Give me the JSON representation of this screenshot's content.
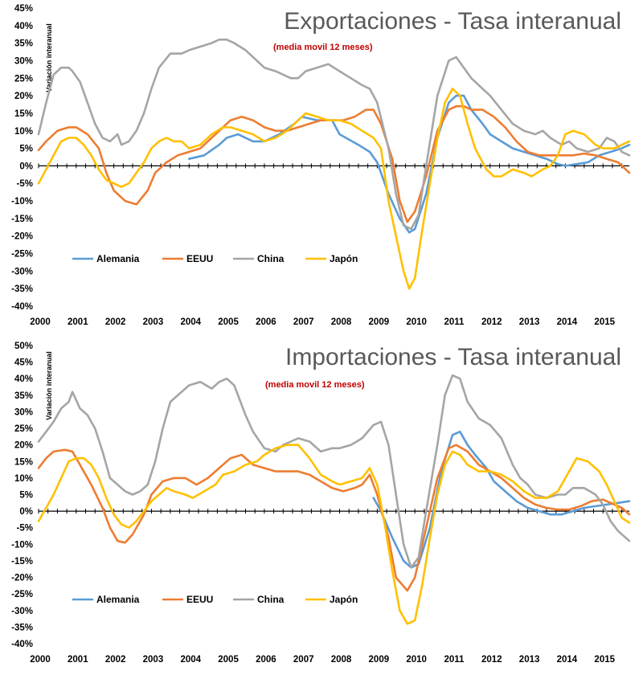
{
  "colors": {
    "Alemania": "#5b9bd5",
    "EEUU": "#ed7d31",
    "China": "#a5a5a5",
    "Japón": "#ffc000"
  },
  "chart_data": [
    {
      "type": "line",
      "title": "Exportaciones - Tasa interanual",
      "subtitle": "(media movil 12 meses)",
      "ylabel": "Variación interanual",
      "ylim": [
        -40,
        45
      ],
      "yticks": [
        "45%",
        "40%",
        "35%",
        "30%",
        "25%",
        "20%",
        "15%",
        "10%",
        "5%",
        "0%",
        "-5%",
        "-10%",
        "-15%",
        "-20%",
        "-25%",
        "-30%",
        "-35%",
        "-40%"
      ],
      "xticks": [
        "2000",
        "2001",
        "2002",
        "2003",
        "2004",
        "2005",
        "2006",
        "2007",
        "2008",
        "2009",
        "2010",
        "2011",
        "2012",
        "2013",
        "2014",
        "2015"
      ],
      "xlim": [
        2000.0,
        2015.7
      ],
      "legend": "bottom-left",
      "series": [
        {
          "name": "Alemania",
          "x": [
            2004.0,
            2004.4,
            2004.8,
            2005.0,
            2005.3,
            2005.7,
            2006.0,
            2006.4,
            2006.8,
            2007.0,
            2007.4,
            2007.8,
            2008.0,
            2008.5,
            2008.8,
            2009.0,
            2009.3,
            2009.6,
            2009.85,
            2010.0,
            2010.3,
            2010.6,
            2010.9,
            2011.1,
            2011.3,
            2011.5,
            2011.8,
            2012.0,
            2012.3,
            2012.6,
            2012.9,
            2013.2,
            2013.5,
            2013.8,
            2014.0,
            2014.3,
            2014.6,
            2014.9,
            2015.2,
            2015.5,
            2015.7
          ],
          "values": [
            2,
            3,
            6,
            8,
            9,
            7,
            7,
            9,
            12,
            14,
            13,
            13,
            9,
            6,
            4,
            1,
            -8,
            -15,
            -19,
            -18,
            -8,
            8,
            18,
            20,
            20,
            16,
            12,
            9,
            7,
            5,
            4,
            3,
            2,
            0.5,
            0,
            0.5,
            1,
            3,
            4,
            5,
            6
          ]
        },
        {
          "name": "EEUU",
          "x": [
            2000.0,
            2000.2,
            2000.5,
            2000.8,
            2001.0,
            2001.3,
            2001.6,
            2001.8,
            2002.0,
            2002.3,
            2002.6,
            2002.9,
            2003.1,
            2003.4,
            2003.7,
            2004.0,
            2004.3,
            2004.6,
            2004.9,
            2005.1,
            2005.4,
            2005.7,
            2006.0,
            2006.3,
            2006.6,
            2006.9,
            2007.2,
            2007.5,
            2007.8,
            2008.1,
            2008.4,
            2008.7,
            2008.9,
            2009.1,
            2009.4,
            2009.6,
            2009.8,
            2010.0,
            2010.3,
            2010.6,
            2010.9,
            2011.1,
            2011.3,
            2011.5,
            2011.8,
            2012.1,
            2012.4,
            2012.7,
            2013.0,
            2013.3,
            2013.6,
            2013.9,
            2014.2,
            2014.5,
            2014.8,
            2015.1,
            2015.4,
            2015.7
          ],
          "values": [
            4.5,
            7,
            10,
            11,
            11,
            9,
            5,
            -2,
            -7,
            -10,
            -11,
            -7,
            -2,
            1,
            3,
            4,
            5,
            8,
            11,
            13,
            14,
            13,
            11,
            10,
            10,
            11,
            12,
            13,
            13,
            13,
            14,
            16,
            16,
            12,
            2,
            -10,
            -16,
            -13,
            -3,
            10,
            16,
            17,
            17,
            16,
            16,
            14,
            11,
            7,
            4,
            3,
            3,
            3,
            3,
            3.5,
            3,
            2,
            1,
            -2
          ]
        },
        {
          "name": "China",
          "x": [
            2000.0,
            2000.2,
            2000.4,
            2000.6,
            2000.8,
            2000.9,
            2001.1,
            2001.3,
            2001.5,
            2001.7,
            2001.9,
            2002.1,
            2002.2,
            2002.4,
            2002.6,
            2002.8,
            2003.0,
            2003.2,
            2003.5,
            2003.8,
            2004.0,
            2004.3,
            2004.6,
            2004.8,
            2005.0,
            2005.2,
            2005.5,
            2005.7,
            2006.0,
            2006.3,
            2006.5,
            2006.7,
            2006.9,
            2007.1,
            2007.4,
            2007.7,
            2008.0,
            2008.3,
            2008.6,
            2008.8,
            2009.0,
            2009.3,
            2009.5,
            2009.7,
            2009.9,
            2010.1,
            2010.3,
            2010.6,
            2010.9,
            2011.1,
            2011.3,
            2011.5,
            2011.8,
            2012.0,
            2012.3,
            2012.6,
            2012.9,
            2013.2,
            2013.4,
            2013.6,
            2013.9,
            2014.1,
            2014.3,
            2014.6,
            2014.9,
            2015.1,
            2015.3,
            2015.5,
            2015.7
          ],
          "values": [
            9,
            18,
            26,
            28,
            28,
            27,
            24,
            18,
            12,
            8,
            7,
            9,
            6,
            7,
            10,
            15,
            22,
            28,
            32,
            32,
            33,
            34,
            35,
            36,
            36,
            35,
            33,
            31,
            28,
            27,
            26,
            25,
            25,
            27,
            28,
            29,
            27,
            25,
            23,
            22,
            18,
            5,
            -8,
            -17,
            -18,
            -14,
            0,
            20,
            30,
            31,
            28,
            25,
            22,
            20,
            16,
            12,
            10,
            9,
            10,
            8,
            6,
            7,
            5,
            4,
            5,
            8,
            7,
            4,
            3
          ]
        },
        {
          "name": "Japón",
          "x": [
            2000.0,
            2000.2,
            2000.4,
            2000.6,
            2000.8,
            2001.0,
            2001.2,
            2001.4,
            2001.6,
            2001.8,
            2002.0,
            2002.2,
            2002.4,
            2002.6,
            2002.8,
            2003.0,
            2003.2,
            2003.4,
            2003.6,
            2003.8,
            2004.0,
            2004.3,
            2004.6,
            2004.9,
            2005.1,
            2005.4,
            2005.7,
            2006.0,
            2006.3,
            2006.6,
            2006.9,
            2007.1,
            2007.4,
            2007.7,
            2008.0,
            2008.3,
            2008.6,
            2008.9,
            2009.1,
            2009.3,
            2009.5,
            2009.7,
            2009.85,
            2010.0,
            2010.2,
            2010.4,
            2010.6,
            2010.8,
            2011.0,
            2011.2,
            2011.4,
            2011.6,
            2011.9,
            2012.1,
            2012.3,
            2012.6,
            2012.9,
            2013.1,
            2013.4,
            2013.6,
            2013.8,
            2014.0,
            2014.2,
            2014.5,
            2014.8,
            2015.0,
            2015.3,
            2015.5,
            2015.7
          ],
          "values": [
            -5,
            -1,
            3,
            7,
            8,
            8,
            6,
            3,
            -1,
            -4,
            -5,
            -6,
            -5,
            -2,
            1,
            5,
            7,
            8,
            7,
            7,
            5,
            6,
            9,
            11,
            11,
            10,
            9,
            7,
            8,
            10,
            13,
            15,
            14,
            13,
            13,
            12,
            10,
            8,
            5,
            -10,
            -20,
            -30,
            -35,
            -32,
            -18,
            -5,
            8,
            18,
            22,
            20,
            12,
            5,
            -1,
            -3,
            -3,
            -1,
            -2,
            -3,
            -1,
            0,
            3,
            9,
            10,
            9,
            6,
            5,
            5,
            6,
            7
          ]
        }
      ]
    },
    {
      "type": "line",
      "title": "Importaciones - Tasa interanual",
      "subtitle": "(media movil 12 meses)",
      "ylabel": "Variación interanual",
      "ylim": [
        -40,
        50
      ],
      "yticks": [
        "50%",
        "45%",
        "40%",
        "35%",
        "30%",
        "25%",
        "20%",
        "15%",
        "10%",
        "5%",
        "0%",
        "-5%",
        "-10%",
        "-15%",
        "-20%",
        "-25%",
        "-30%",
        "-35%",
        "-40%"
      ],
      "xticks": [
        "2000",
        "2001",
        "2002",
        "2003",
        "2004",
        "2005",
        "2006",
        "2007",
        "2008",
        "2009",
        "2010",
        "2011",
        "2012",
        "2013",
        "2014",
        "2015"
      ],
      "xlim": [
        2000.0,
        2015.7
      ],
      "legend": "bottom-left",
      "series": [
        {
          "name": "Alemania",
          "x": [
            2008.9,
            2009.1,
            2009.4,
            2009.7,
            2009.9,
            2010.1,
            2010.4,
            2010.7,
            2011.0,
            2011.2,
            2011.4,
            2011.6,
            2011.9,
            2012.1,
            2012.4,
            2012.7,
            2013.0,
            2013.3,
            2013.6,
            2013.9,
            2014.2,
            2014.5,
            2014.8,
            2015.1,
            2015.4,
            2015.7
          ],
          "values": [
            4,
            0,
            -8,
            -15,
            -17,
            -16,
            -5,
            12,
            23,
            24,
            20,
            17,
            13,
            9,
            6,
            3,
            1,
            0,
            -1,
            -1,
            0,
            1,
            1.5,
            2,
            2.5,
            3
          ]
        },
        {
          "name": "EEUU",
          "x": [
            2000.0,
            2000.2,
            2000.4,
            2000.7,
            2000.9,
            2001.1,
            2001.4,
            2001.7,
            2001.9,
            2002.1,
            2002.3,
            2002.5,
            2002.8,
            2003.0,
            2003.3,
            2003.6,
            2003.9,
            2004.2,
            2004.5,
            2004.8,
            2005.1,
            2005.4,
            2005.7,
            2006.0,
            2006.3,
            2006.6,
            2006.9,
            2007.2,
            2007.5,
            2007.8,
            2008.1,
            2008.4,
            2008.6,
            2008.8,
            2009.0,
            2009.3,
            2009.5,
            2009.8,
            2010.0,
            2010.3,
            2010.6,
            2010.9,
            2011.1,
            2011.4,
            2011.7,
            2012.0,
            2012.3,
            2012.6,
            2012.9,
            2013.2,
            2013.5,
            2013.8,
            2014.1,
            2014.4,
            2014.7,
            2015.0,
            2015.3,
            2015.5,
            2015.7
          ],
          "values": [
            13,
            16,
            18,
            18.5,
            18,
            14,
            8,
            1,
            -5,
            -9,
            -9.5,
            -7,
            -1,
            5,
            9,
            10,
            10,
            8,
            10,
            13,
            16,
            17,
            14,
            13,
            12,
            12,
            12,
            11,
            9,
            7,
            6,
            7,
            8,
            11,
            5,
            -8,
            -20,
            -24,
            -20,
            -5,
            10,
            19,
            20,
            18,
            14,
            12,
            10,
            7,
            4,
            2,
            1,
            0.5,
            0.5,
            1.5,
            3,
            3.5,
            2,
            1,
            -1
          ]
        },
        {
          "name": "China",
          "x": [
            2000.0,
            2000.2,
            2000.4,
            2000.6,
            2000.8,
            2000.9,
            2001.1,
            2001.3,
            2001.5,
            2001.7,
            2001.9,
            2002.1,
            2002.3,
            2002.5,
            2002.7,
            2002.9,
            2003.1,
            2003.3,
            2003.5,
            2003.8,
            2004.0,
            2004.3,
            2004.6,
            2004.8,
            2005.0,
            2005.2,
            2005.5,
            2005.7,
            2006.0,
            2006.3,
            2006.5,
            2006.7,
            2006.9,
            2007.2,
            2007.5,
            2007.8,
            2008.0,
            2008.3,
            2008.6,
            2008.9,
            2009.1,
            2009.3,
            2009.5,
            2009.7,
            2009.9,
            2010.1,
            2010.3,
            2010.6,
            2010.8,
            2011.0,
            2011.2,
            2011.4,
            2011.7,
            2012.0,
            2012.3,
            2012.6,
            2012.8,
            2013.0,
            2013.2,
            2013.5,
            2013.8,
            2014.0,
            2014.2,
            2014.5,
            2014.8,
            2015.0,
            2015.2,
            2015.4,
            2015.7
          ],
          "values": [
            21,
            24,
            27,
            31,
            33,
            36,
            31,
            29,
            25,
            18,
            10,
            8,
            6,
            5,
            6,
            8,
            15,
            25,
            33,
            36,
            38,
            39,
            37,
            39,
            40,
            38,
            29,
            24,
            19,
            18,
            20,
            21,
            22,
            21,
            18,
            19,
            19,
            20,
            22,
            26,
            27,
            20,
            5,
            -10,
            -17,
            -14,
            0,
            20,
            35,
            41,
            40,
            33,
            28,
            26,
            22,
            14,
            10,
            8,
            5,
            4,
            5,
            5,
            7,
            7,
            5,
            2,
            -3,
            -6,
            -9
          ]
        },
        {
          "name": "Japón",
          "x": [
            2000.0,
            2000.2,
            2000.4,
            2000.6,
            2000.8,
            2001.0,
            2001.2,
            2001.4,
            2001.6,
            2001.8,
            2002.0,
            2002.2,
            2002.4,
            2002.6,
            2002.8,
            2003.0,
            2003.2,
            2003.4,
            2003.6,
            2003.9,
            2004.1,
            2004.4,
            2004.7,
            2004.9,
            2005.2,
            2005.5,
            2005.8,
            2006.0,
            2006.3,
            2006.6,
            2006.9,
            2007.2,
            2007.5,
            2007.8,
            2008.0,
            2008.3,
            2008.6,
            2008.8,
            2009.0,
            2009.2,
            2009.4,
            2009.6,
            2009.8,
            2010.0,
            2010.2,
            2010.4,
            2010.6,
            2010.8,
            2011.0,
            2011.2,
            2011.4,
            2011.7,
            2012.0,
            2012.3,
            2012.6,
            2012.9,
            2013.2,
            2013.5,
            2013.8,
            2014.1,
            2014.3,
            2014.6,
            2014.9,
            2015.1,
            2015.3,
            2015.5,
            2015.7
          ],
          "values": [
            -3,
            1,
            5,
            10,
            15,
            16,
            16,
            14,
            10,
            4,
            -1,
            -4,
            -5,
            -3,
            0,
            3,
            5,
            7,
            6,
            5,
            4,
            6,
            8,
            11,
            12,
            14,
            15,
            17,
            19,
            20,
            20,
            16,
            11,
            9,
            8,
            9,
            10,
            13,
            8,
            -4,
            -18,
            -30,
            -34,
            -33,
            -22,
            -8,
            5,
            14,
            18,
            17,
            14,
            12,
            12,
            11,
            9,
            6,
            4,
            4,
            6,
            12,
            16,
            15,
            12,
            8,
            3,
            -2,
            -3.5
          ]
        }
      ]
    }
  ]
}
